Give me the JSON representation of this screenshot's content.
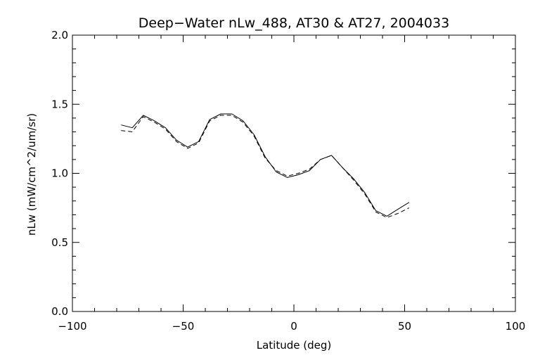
{
  "chart_data": {
    "type": "line",
    "title": "Deep−Water nLw_488, AT30 & AT27, 2004033",
    "xlabel": "Latitude (deg)",
    "ylabel": "nLw (mW/cm^2/um/sr)",
    "xlim": [
      -100,
      100
    ],
    "ylim": [
      0.0,
      2.0
    ],
    "xticks": [
      -100,
      -50,
      0,
      50,
      100
    ],
    "xtick_labels": [
      "−100",
      "−50",
      "0",
      "50",
      "100"
    ],
    "yticks": [
      0.0,
      0.5,
      1.0,
      1.5,
      2.0
    ],
    "ytick_labels": [
      "0.0",
      "0.5",
      "1.0",
      "1.5",
      "2.0"
    ],
    "x_minor_step": 10,
    "y_minor_step": 0.1,
    "grid": false,
    "legend": "none",
    "series": [
      {
        "style": "solid",
        "color": "#000000",
        "x": [
          -78,
          -73,
          -68,
          -63,
          -58,
          -53,
          -48,
          -43,
          -38,
          -33,
          -28,
          -23,
          -18,
          -13,
          -8,
          -3,
          2,
          7,
          12,
          17,
          22,
          27,
          32,
          37,
          42,
          47,
          52
        ],
        "y": [
          1.35,
          1.33,
          1.42,
          1.38,
          1.33,
          1.24,
          1.19,
          1.23,
          1.39,
          1.43,
          1.43,
          1.38,
          1.28,
          1.12,
          1.01,
          0.97,
          0.99,
          1.02,
          1.1,
          1.13,
          1.04,
          0.96,
          0.86,
          0.73,
          0.69,
          0.74,
          0.79
        ]
      },
      {
        "style": "dashed",
        "color": "#000000",
        "x": [
          -78,
          -73,
          -68,
          -63,
          -58,
          -53,
          -48,
          -43,
          -38,
          -33,
          -28,
          -23,
          -18,
          -13,
          -8,
          -3,
          2,
          7,
          12,
          17,
          22,
          27,
          32,
          37,
          42,
          47,
          52
        ],
        "y": [
          1.31,
          1.3,
          1.41,
          1.37,
          1.32,
          1.23,
          1.18,
          1.22,
          1.38,
          1.42,
          1.42,
          1.37,
          1.27,
          1.11,
          1.02,
          0.98,
          1.0,
          1.03,
          1.1,
          1.13,
          1.04,
          0.95,
          0.85,
          0.72,
          0.68,
          0.71,
          0.75
        ]
      }
    ]
  }
}
